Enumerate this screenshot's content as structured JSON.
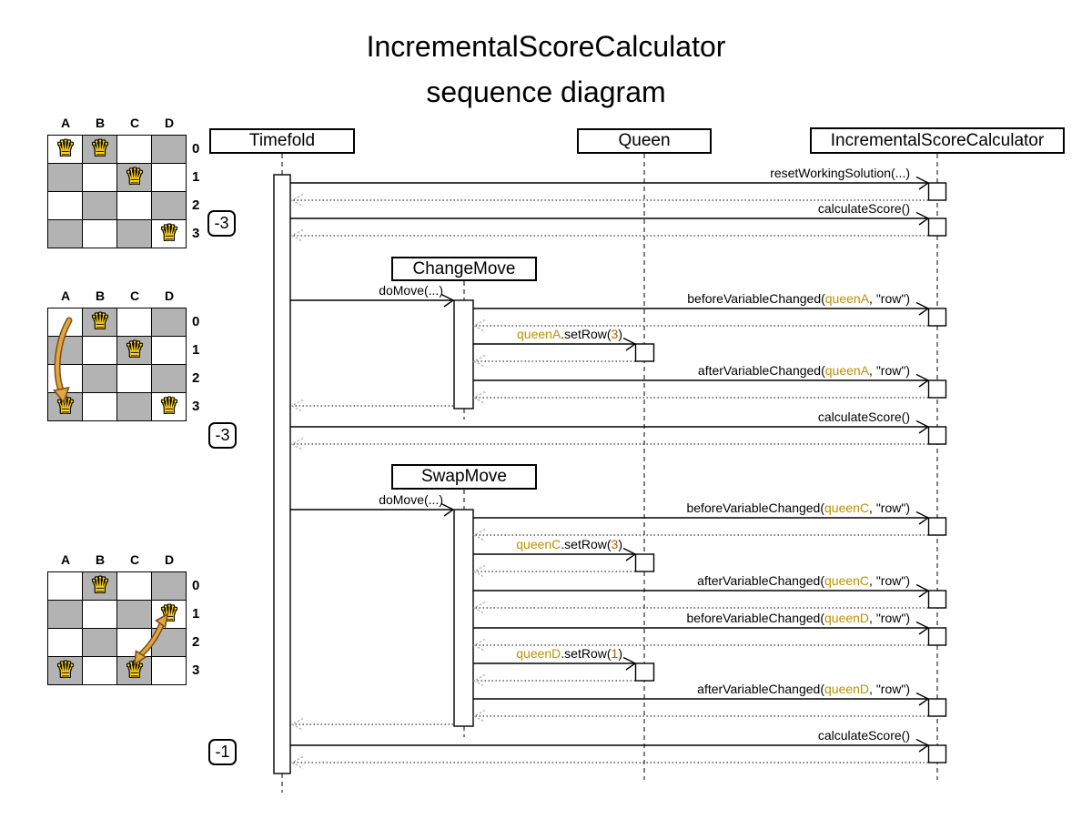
{
  "title": {
    "line1": "IncrementalScoreCalculator",
    "line2": "sequence diagram"
  },
  "participants": {
    "timefold": "Timefold",
    "queen": "Queen",
    "calculator": "IncrementalScoreCalculator",
    "change_move": "ChangeMove",
    "swap_move": "SwapMove"
  },
  "scores": {
    "after_reset": "-3",
    "after_change_move": "-3",
    "after_swap_move": "-1"
  },
  "colors": {
    "highlight_name": "#bf9000",
    "highlight_value": "#b45f06",
    "board_dark": "#b3b3b3",
    "queen_gold": "#ffd21e",
    "move_arrow_fill": "#e2a646",
    "move_arrow_border": "#7a4f12"
  },
  "messages": {
    "reset": {
      "label": "resetWorkingSolution(...)"
    },
    "calc1": {
      "label": "calculateScore()"
    },
    "domove1": {
      "label": "doMove(...)"
    },
    "beforeA": {
      "pre": "beforeVariableChanged(",
      "arg": "queenA",
      "post": ", \"row\")"
    },
    "setrowA": {
      "obj": "queenA",
      "mid": ".setRow(",
      "val": "3",
      "post": ")"
    },
    "afterA": {
      "pre": "afterVariableChanged(",
      "arg": "queenA",
      "post": ", \"row\")"
    },
    "calc2": {
      "label": "calculateScore()"
    },
    "domove2": {
      "label": "doMove(...)"
    },
    "beforeC": {
      "pre": "beforeVariableChanged(",
      "arg": "queenC",
      "post": ", \"row\")"
    },
    "setrowC": {
      "obj": "queenC",
      "mid": ".setRow(",
      "val": "3",
      "post": ")"
    },
    "afterC": {
      "pre": "afterVariableChanged(",
      "arg": "queenC",
      "post": ", \"row\")"
    },
    "beforeD": {
      "pre": "beforeVariableChanged(",
      "arg": "queenD",
      "post": ", \"row\")"
    },
    "setrowD": {
      "obj": "queenD",
      "mid": ".setRow(",
      "val": "1",
      "post": ")"
    },
    "afterD": {
      "pre": "afterVariableChanged(",
      "arg": "queenD",
      "post": ", \"row\")"
    },
    "calc3": {
      "label": "calculateScore()"
    }
  },
  "boards": [
    {
      "columns": [
        "A",
        "B",
        "C",
        "D"
      ],
      "rows": [
        "0",
        "1",
        "2",
        "3"
      ],
      "queens": [
        {
          "col": 0,
          "row": 0
        },
        {
          "col": 1,
          "row": 0
        },
        {
          "col": 2,
          "row": 1
        },
        {
          "col": 3,
          "row": 3
        }
      ]
    },
    {
      "columns": [
        "A",
        "B",
        "C",
        "D"
      ],
      "rows": [
        "0",
        "1",
        "2",
        "3"
      ],
      "queens": [
        {
          "col": 1,
          "row": 0
        },
        {
          "col": 2,
          "row": 1
        },
        {
          "col": 0,
          "row": 3
        },
        {
          "col": 3,
          "row": 3
        }
      ],
      "move": {
        "piece": "queenA",
        "from": "A0",
        "to": "A3"
      }
    },
    {
      "columns": [
        "A",
        "B",
        "C",
        "D"
      ],
      "rows": [
        "0",
        "1",
        "2",
        "3"
      ],
      "queens": [
        {
          "col": 1,
          "row": 0
        },
        {
          "col": 3,
          "row": 1
        },
        {
          "col": 0,
          "row": 3
        },
        {
          "col": 2,
          "row": 3
        }
      ],
      "move": {
        "swap": [
          "queenC",
          "queenD"
        ],
        "from": "D1",
        "to": "C3",
        "bidirectional": true
      }
    }
  ]
}
